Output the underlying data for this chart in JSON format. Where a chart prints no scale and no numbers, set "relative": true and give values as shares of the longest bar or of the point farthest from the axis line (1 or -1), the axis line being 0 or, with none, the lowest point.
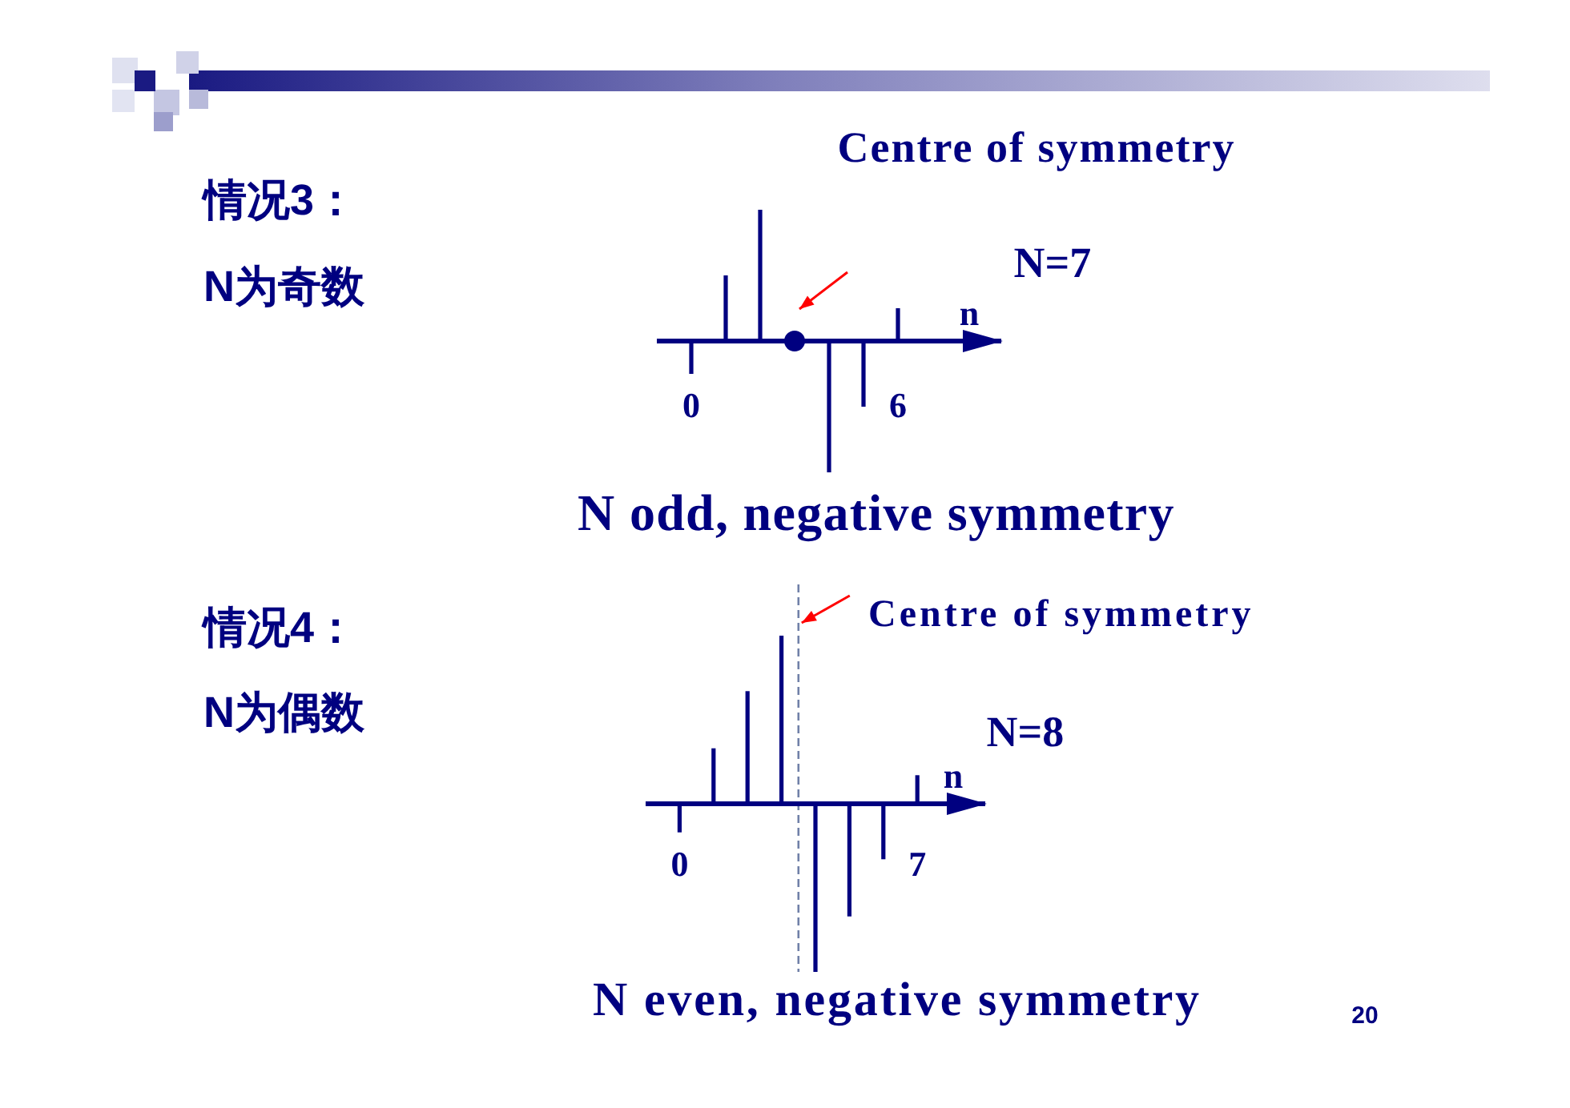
{
  "chart_data": [
    {
      "type": "bar",
      "xlabel": "n",
      "x": [
        0,
        1,
        2,
        3,
        4,
        5,
        6
      ],
      "xlim": [
        -1,
        9
      ],
      "xticks": [
        0,
        6
      ],
      "relative": true,
      "series": [
        {
          "color": "#000080",
          "values": [
            -0.25,
            0.5,
            1,
            0,
            -1,
            -0.5,
            0.25
          ]
        },
        {
          "type": "scatter",
          "x": [
            3
          ],
          "values": [
            0
          ],
          "color": "#000080",
          "marker": "circle"
        }
      ],
      "annotations": [
        "情况3：",
        "N为奇数",
        "Centre of symmetry",
        "N=7",
        "N odd, negative symmetry"
      ]
    },
    {
      "type": "bar",
      "xlabel": "n",
      "x": [
        0,
        1,
        2,
        3,
        4,
        5,
        6,
        7
      ],
      "xlim": [
        -1,
        9
      ],
      "xticks": [
        0,
        7
      ],
      "relative": true,
      "series": [
        {
          "color": "#000080",
          "values": [
            -0.17,
            0.33,
            0.67,
            1,
            -1,
            -0.67,
            -0.33,
            0.17
          ]
        }
      ],
      "ref_lines": [
        {
          "axis": "x",
          "value": 3.5,
          "label": "Centre of symmetry",
          "color": "#7080a8",
          "line_style": "dashed"
        }
      ],
      "annotations": [
        "情况4：",
        "N为偶数",
        "N=8",
        "N even, negative symmetry",
        "20"
      ]
    }
  ]
}
